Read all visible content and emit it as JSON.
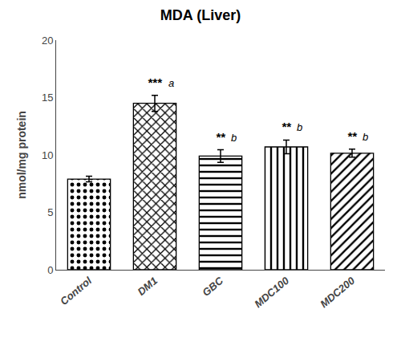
{
  "chart_data": {
    "type": "bar",
    "title": "MDA (Liver)",
    "ylabel": "nmol/mg protein",
    "categories": [
      "Control",
      "DM1",
      "GBC",
      "MDC100",
      "MDC200"
    ],
    "values": [
      7.9,
      14.5,
      9.9,
      10.7,
      10.15
    ],
    "errors": [
      0.25,
      0.7,
      0.55,
      0.6,
      0.35
    ],
    "color": "#ffffff",
    "ylim": [
      0,
      20
    ],
    "yticks": [
      0,
      5,
      10,
      15,
      20
    ],
    "grid": false,
    "annotations": [
      {
        "category": "DM1",
        "stars": "***",
        "letter": "a"
      },
      {
        "category": "GBC",
        "stars": "**",
        "letter": "b"
      },
      {
        "category": "MDC100",
        "stars": "**",
        "letter": "b"
      },
      {
        "category": "MDC200",
        "stars": "**",
        "letter": "b"
      }
    ]
  }
}
